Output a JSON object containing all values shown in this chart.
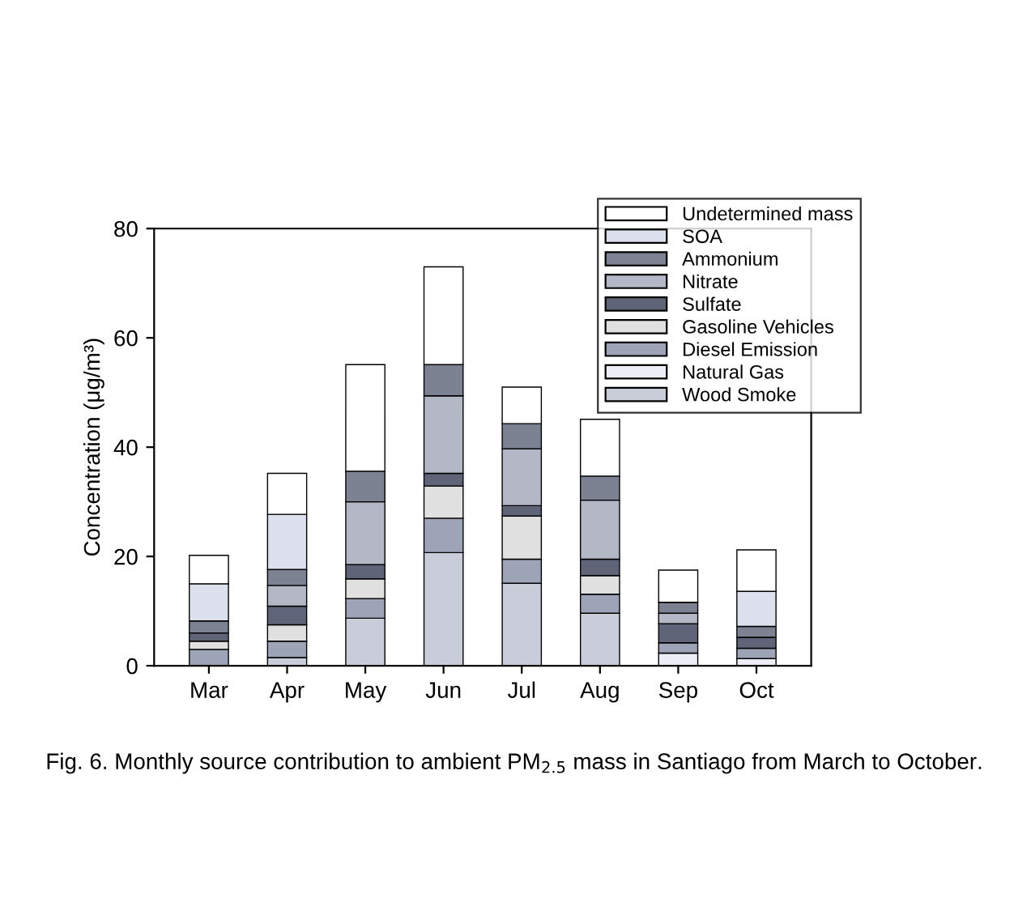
{
  "chart_data": {
    "type": "bar",
    "stacked": true,
    "categories": [
      "Mar",
      "Apr",
      "May",
      "Jun",
      "Jul",
      "Aug",
      "Sep",
      "Oct"
    ],
    "series": [
      {
        "name": "Wood Smoke",
        "color": "#c9cdda",
        "values": [
          0,
          1.5,
          8.7,
          20.7,
          15.1,
          9.6,
          0,
          0
        ]
      },
      {
        "name": "Natural Gas",
        "color": "#eceef6",
        "values": [
          0,
          0,
          0,
          0,
          0,
          0,
          2.3,
          1.3
        ]
      },
      {
        "name": "Diesel Emission",
        "color": "#9ea4b8",
        "values": [
          3,
          3,
          3.6,
          6.3,
          4.4,
          3.5,
          1.9,
          1.9
        ]
      },
      {
        "name": "Gasoline Vehicles",
        "color": "#e0e0e0",
        "values": [
          1.5,
          3,
          3.6,
          5.9,
          7.9,
          3.4,
          0,
          0
        ]
      },
      {
        "name": "Sulfate",
        "color": "#5f6478",
        "values": [
          1.5,
          3.4,
          2.6,
          2.3,
          1.9,
          3,
          3.5,
          2
        ]
      },
      {
        "name": "Nitrate",
        "color": "#b4b8c6",
        "values": [
          0,
          3.8,
          11.5,
          14.2,
          10.4,
          10.8,
          1.9,
          0
        ]
      },
      {
        "name": "Ammonium",
        "color": "#7d8292",
        "values": [
          2.2,
          2.9,
          5.6,
          5.7,
          4.6,
          4.4,
          2,
          2
        ]
      },
      {
        "name": "SOA",
        "color": "#dde1ee",
        "values": [
          6.8,
          10.1,
          0,
          0,
          0,
          0,
          0,
          6.4
        ]
      },
      {
        "name": "Undetermined mass",
        "color": "#ffffff",
        "values": [
          5.2,
          7.5,
          19.5,
          17.9,
          6.7,
          10.4,
          5.9,
          7.6
        ]
      }
    ],
    "ylabel": "Concentration (μg/m³)",
    "ylim": [
      0,
      80
    ],
    "yticks": [
      0,
      20,
      40,
      60,
      80
    ],
    "legend": "top right",
    "grid": false,
    "annotations": [
      "Fig. 6. Monthly source contribution to ambient PM$_{2.5}$ mass in Santiago from March to October."
    ]
  }
}
